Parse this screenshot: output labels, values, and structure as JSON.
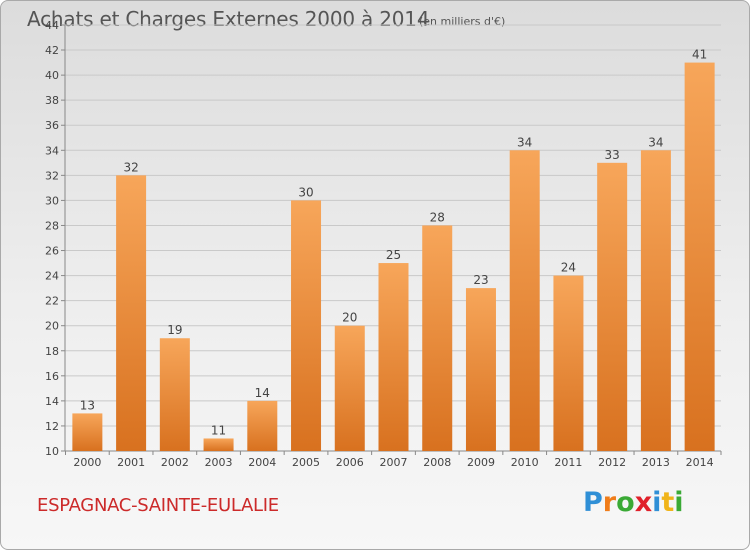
{
  "header": {
    "title": "Achats et Charges Externes 2000 à 2014",
    "subtitle": "(en milliers d'€)"
  },
  "footer": {
    "commune": "ESPAGNAC-SAINTE-EULALIE",
    "brand": {
      "letters": [
        "P",
        "r",
        "o",
        "x",
        "i",
        "t",
        "i"
      ],
      "colors": [
        "#2f8fd6",
        "#f07d1a",
        "#3aaa35",
        "#e0202a",
        "#2f8fd6",
        "#f0b41a",
        "#3aaa35"
      ]
    }
  },
  "colors": {
    "bar_light": "#f7a65a",
    "bar_dark": "#d8711f",
    "axis_text": "#444444",
    "label_text": "#444444",
    "commune_text": "#cc2a2a"
  },
  "chart_data": {
    "type": "bar",
    "title": "Achats et Charges Externes 2000 à 2014",
    "subtitle": "(en milliers d'€)",
    "categories": [
      "2000",
      "2001",
      "2002",
      "2003",
      "2004",
      "2005",
      "2006",
      "2007",
      "2008",
      "2009",
      "2010",
      "2011",
      "2012",
      "2013",
      "2014"
    ],
    "values": [
      13,
      32,
      19,
      11,
      14,
      30,
      20,
      25,
      28,
      23,
      34,
      24,
      33,
      34,
      41
    ],
    "ylim": [
      10,
      44
    ],
    "yticks": [
      10,
      12,
      14,
      16,
      18,
      20,
      22,
      24,
      26,
      28,
      30,
      32,
      34,
      36,
      38,
      40,
      42,
      44
    ],
    "grid": true,
    "legend": "none"
  }
}
